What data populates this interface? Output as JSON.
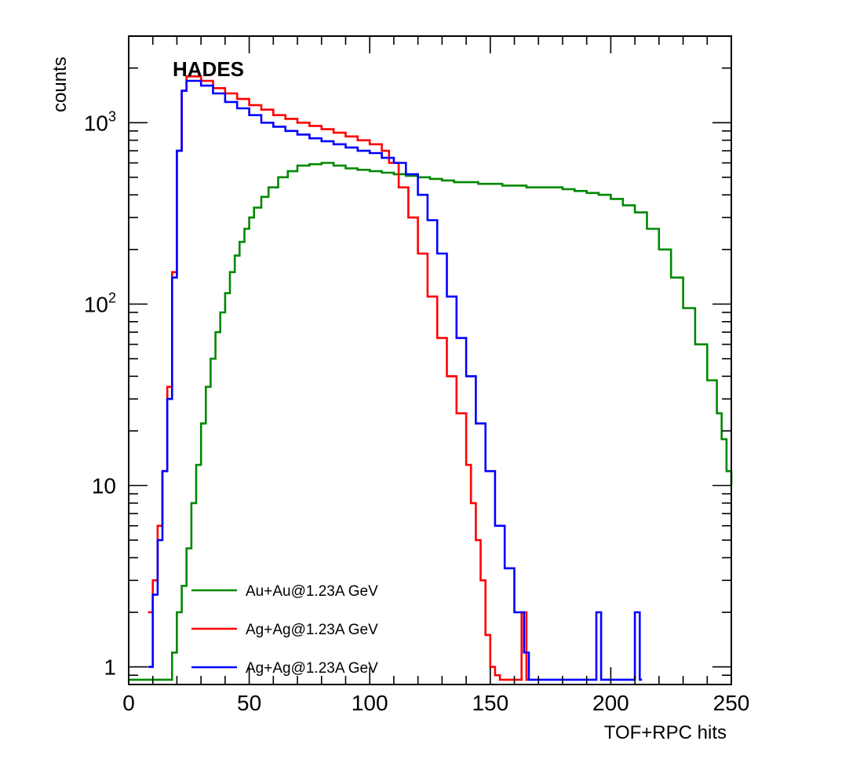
{
  "chart_data": {
    "type": "line",
    "style": "step-histogram",
    "label": "HADES",
    "xlabel": "TOF+RPC hits",
    "ylabel": "counts",
    "xlim": [
      0,
      250
    ],
    "ylim": [
      0.8,
      3000
    ],
    "yscale": "log",
    "grid": false,
    "legend_position": "bottom-left",
    "x_ticks": [
      {
        "value": 0,
        "label": "0"
      },
      {
        "value": 50,
        "label": "50"
      },
      {
        "value": 100,
        "label": "100"
      },
      {
        "value": 150,
        "label": "150"
      },
      {
        "value": 200,
        "label": "200"
      },
      {
        "value": 250,
        "label": "250"
      }
    ],
    "y_ticks": [
      {
        "value": 1,
        "base": "1",
        "exp": ""
      },
      {
        "value": 10,
        "base": "10",
        "exp": ""
      },
      {
        "value": 100,
        "base": "10",
        "exp": "2"
      },
      {
        "value": 1000,
        "base": "10",
        "exp": "3"
      }
    ],
    "series": [
      {
        "name": "Au+Au@1.23A GeV",
        "color": "#008800",
        "x": [
          0,
          10,
          14,
          18,
          20,
          22,
          24,
          26,
          28,
          30,
          32,
          34,
          36,
          38,
          40,
          42,
          44,
          46,
          48,
          50,
          52,
          55,
          58,
          62,
          66,
          70,
          75,
          80,
          85,
          90,
          95,
          100,
          105,
          110,
          115,
          120,
          125,
          130,
          135,
          140,
          145,
          150,
          155,
          160,
          165,
          170,
          175,
          180,
          185,
          190,
          195,
          200,
          205,
          210,
          215,
          220,
          225,
          230,
          235,
          240,
          244,
          246,
          248,
          250
        ],
        "y": [
          0.85,
          0.85,
          0.85,
          1.2,
          2,
          2.8,
          4.5,
          8,
          13,
          22,
          35,
          50,
          70,
          90,
          115,
          150,
          185,
          220,
          260,
          300,
          340,
          390,
          440,
          500,
          540,
          580,
          590,
          600,
          580,
          560,
          550,
          540,
          530,
          520,
          510,
          500,
          490,
          480,
          470,
          470,
          460,
          460,
          450,
          450,
          440,
          440,
          440,
          430,
          420,
          410,
          400,
          380,
          350,
          320,
          260,
          200,
          140,
          95,
          60,
          38,
          25,
          18,
          12,
          10
        ]
      },
      {
        "name": "Ag+Ag@1.23A GeV",
        "color": "#ff0000",
        "x": [
          8,
          10,
          12,
          14,
          16,
          18,
          20,
          22,
          24,
          26,
          30,
          35,
          40,
          45,
          50,
          55,
          60,
          65,
          70,
          75,
          80,
          85,
          90,
          95,
          100,
          105,
          108,
          112,
          116,
          120,
          124,
          128,
          132,
          136,
          140,
          142,
          144,
          146,
          148,
          150,
          152,
          154,
          160,
          163,
          165
        ],
        "y": [
          2,
          3,
          6,
          12,
          35,
          150,
          700,
          1500,
          1800,
          1800,
          1700,
          1550,
          1450,
          1350,
          1250,
          1180,
          1100,
          1050,
          1000,
          960,
          920,
          880,
          840,
          800,
          760,
          700,
          600,
          440,
          300,
          190,
          110,
          65,
          40,
          25,
          13,
          8,
          5,
          3,
          1.5,
          1,
          0.9,
          0.85,
          0.85,
          2,
          0.85
        ]
      },
      {
        "name": "Ag+Ag@1.23A GeV",
        "color": "#0000ff",
        "x": [
          8,
          10,
          12,
          14,
          16,
          18,
          20,
          22,
          24,
          26,
          30,
          35,
          40,
          45,
          50,
          55,
          60,
          65,
          70,
          75,
          80,
          85,
          90,
          95,
          100,
          105,
          110,
          115,
          120,
          124,
          128,
          132,
          136,
          140,
          144,
          148,
          152,
          156,
          160,
          164,
          166,
          170,
          190,
          194,
          196,
          200,
          208,
          210,
          212
        ],
        "y": [
          1,
          2.5,
          5,
          12,
          30,
          140,
          700,
          1500,
          1700,
          1700,
          1600,
          1450,
          1300,
          1200,
          1100,
          1000,
          950,
          900,
          860,
          820,
          790,
          760,
          730,
          700,
          680,
          640,
          600,
          520,
          400,
          290,
          190,
          110,
          65,
          40,
          22,
          12,
          6,
          3.5,
          2,
          1.2,
          0.85,
          0.85,
          0.85,
          2,
          0.85,
          0.85,
          0.85,
          2,
          0.85
        ]
      }
    ]
  }
}
